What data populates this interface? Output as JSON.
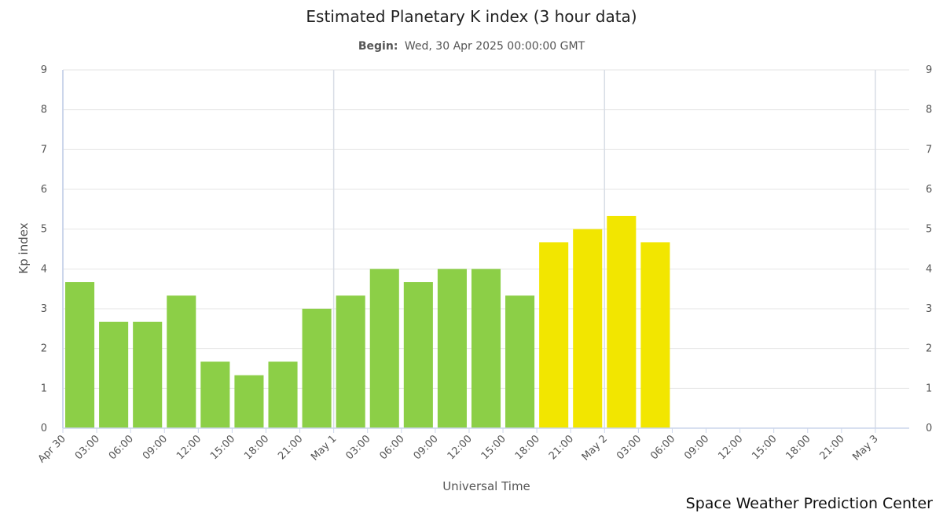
{
  "chart_data": {
    "type": "bar",
    "title": "Estimated Planetary K index (3 hour data)",
    "subtitle_label": "Begin:",
    "subtitle_value": "Wed, 30 Apr 2025 00:00:00 GMT",
    "xlabel": "Universal Time",
    "ylabel": "Kp index",
    "ylim": [
      0,
      9
    ],
    "yticks": [
      "0",
      "1",
      "2",
      "3",
      "4",
      "5",
      "6",
      "7",
      "8",
      "9"
    ],
    "x_tick_labels": [
      "Apr 30",
      "03:00",
      "06:00",
      "09:00",
      "12:00",
      "15:00",
      "18:00",
      "21:00",
      "May 1",
      "03:00",
      "06:00",
      "09:00",
      "12:00",
      "15:00",
      "18:00",
      "21:00",
      "May 2",
      "03:00",
      "06:00",
      "09:00",
      "12:00",
      "15:00",
      "18:00",
      "21:00",
      "May 3"
    ],
    "categories": [
      "Apr 30 00:00",
      "Apr 30 03:00",
      "Apr 30 06:00",
      "Apr 30 09:00",
      "Apr 30 12:00",
      "Apr 30 15:00",
      "Apr 30 18:00",
      "Apr 30 21:00",
      "May 1 00:00",
      "May 1 03:00",
      "May 1 06:00",
      "May 1 09:00",
      "May 1 12:00",
      "May 1 15:00",
      "May 1 18:00",
      "May 1 21:00",
      "May 2 00:00",
      "May 2 03:00"
    ],
    "values": [
      3.67,
      2.67,
      2.67,
      3.33,
      1.67,
      1.33,
      1.67,
      3.0,
      3.33,
      4.0,
      3.67,
      4.0,
      4.0,
      3.33,
      4.67,
      5.0,
      5.33,
      4.67
    ],
    "colors": {
      "quiet": "#8ccf47",
      "storm": "#f2e600",
      "grid": "#e6e6e6",
      "axis": "#ccd6eb",
      "day_line": "#d8dde6"
    },
    "grid": true,
    "legend": "none",
    "credit": "Space Weather Prediction Center"
  }
}
